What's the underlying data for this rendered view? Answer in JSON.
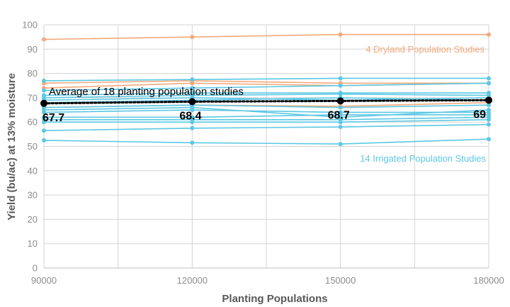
{
  "colors": {
    "irrigated": "#5bc8e4",
    "dryland": "#f4a97a",
    "average": "#000000",
    "grid": "#d3d3d3",
    "irrigated_text": "#5bc8e4",
    "dryland_text": "#f4a97a"
  },
  "chart_data": {
    "type": "line",
    "xlabel": "Planting Populations",
    "ylabel": "Yield (bu/ac) at 13% moisture",
    "x": [
      90000,
      120000,
      150000,
      180000
    ],
    "xlim": [
      90000,
      180000
    ],
    "ylim": [
      0,
      100
    ],
    "x_ticks": [
      "90000",
      "120000",
      "150000",
      "180000"
    ],
    "y_ticks": [
      "0",
      "10",
      "20",
      "30",
      "40",
      "50",
      "60",
      "70",
      "80",
      "90",
      "100"
    ],
    "grid": true,
    "annotations": {
      "dryland": "4 Dryland Population Studies",
      "irrigated": "14  Irrigated Population Studies",
      "average": "Average of 18 planting population studies"
    },
    "average": {
      "values": [
        67.7,
        68.4,
        68.7,
        69
      ],
      "labels": [
        "67.7",
        "68.4",
        "68.7",
        "69"
      ]
    },
    "dryland_series": [
      {
        "values": [
          94,
          95,
          96,
          96
        ]
      },
      {
        "values": [
          76,
          77,
          76,
          76
        ]
      },
      {
        "values": [
          74,
          76,
          75,
          76
        ]
      },
      {
        "values": [
          66,
          67,
          66.5,
          68
        ]
      }
    ],
    "irrigated_series": [
      {
        "values": [
          77,
          77.5,
          78,
          78
        ]
      },
      {
        "values": [
          73,
          74,
          75,
          76
        ]
      },
      {
        "values": [
          71,
          72,
          72,
          72
        ]
      },
      {
        "values": [
          70,
          71,
          71.5,
          71
        ]
      },
      {
        "values": [
          69,
          70,
          69,
          70
        ]
      },
      {
        "values": [
          68,
          69,
          70,
          69
        ]
      },
      {
        "values": [
          66,
          67,
          66,
          67
        ]
      },
      {
        "values": [
          65,
          66,
          62,
          65
        ]
      },
      {
        "values": [
          64,
          65,
          64,
          64
        ]
      },
      {
        "values": [
          62,
          62,
          63,
          63
        ]
      },
      {
        "values": [
          61,
          61,
          61,
          62
        ]
      },
      {
        "values": [
          60,
          60,
          60,
          61
        ]
      },
      {
        "values": [
          56.5,
          57.5,
          58,
          59
        ]
      },
      {
        "values": [
          52.5,
          51.5,
          51,
          53
        ]
      }
    ]
  }
}
